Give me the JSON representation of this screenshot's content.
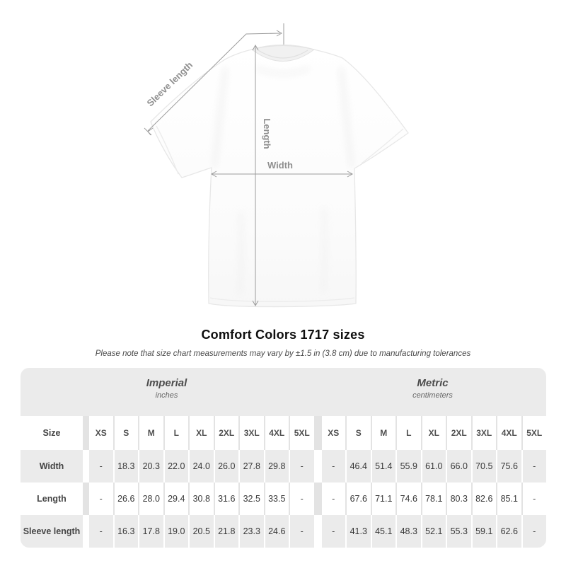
{
  "diagram": {
    "labels": {
      "sleeve": "Sleeve length",
      "length": "Length",
      "width": "Width"
    }
  },
  "title": "Comfort Colors 1717 sizes",
  "note": "Please note that size chart measurements may vary by ±1.5 in (3.8 cm) due to manufacturing tolerances",
  "table": {
    "groups": [
      {
        "name": "Imperial",
        "unit": "inches"
      },
      {
        "name": "Metric",
        "unit": "centimeters"
      }
    ],
    "size_label": "Size",
    "sizes": [
      "XS",
      "S",
      "M",
      "L",
      "XL",
      "2XL",
      "3XL",
      "4XL",
      "5XL"
    ],
    "rows": [
      {
        "label": "Width",
        "imperial": [
          "-",
          "18.3",
          "20.3",
          "22.0",
          "24.0",
          "26.0",
          "27.8",
          "29.8",
          "-"
        ],
        "metric": [
          "-",
          "46.4",
          "51.4",
          "55.9",
          "61.0",
          "66.0",
          "70.5",
          "75.6",
          "-"
        ]
      },
      {
        "label": "Length",
        "imperial": [
          "-",
          "26.6",
          "28.0",
          "29.4",
          "30.8",
          "31.6",
          "32.5",
          "33.5",
          "-"
        ],
        "metric": [
          "-",
          "67.6",
          "71.1",
          "74.6",
          "78.1",
          "80.3",
          "82.6",
          "85.1",
          "-"
        ]
      },
      {
        "label": "Sleeve length",
        "imperial": [
          "-",
          "16.3",
          "17.8",
          "19.0",
          "20.5",
          "21.8",
          "23.3",
          "24.6",
          "-"
        ],
        "metric": [
          "-",
          "41.3",
          "45.1",
          "48.3",
          "52.1",
          "55.3",
          "59.1",
          "62.6",
          "-"
        ]
      }
    ]
  },
  "chart_data": {
    "type": "table",
    "title": "Comfort Colors 1717 sizes",
    "column_groups": [
      "Imperial (inches)",
      "Metric (centimeters)"
    ],
    "columns": [
      "Size",
      "XS",
      "S",
      "M",
      "L",
      "XL",
      "2XL",
      "3XL",
      "4XL",
      "5XL"
    ],
    "rows": [
      [
        "Width (in)",
        "-",
        18.3,
        20.3,
        22.0,
        24.0,
        26.0,
        27.8,
        29.8,
        "-"
      ],
      [
        "Length (in)",
        "-",
        26.6,
        28.0,
        29.4,
        30.8,
        31.6,
        32.5,
        33.5,
        "-"
      ],
      [
        "Sleeve length (in)",
        "-",
        16.3,
        17.8,
        19.0,
        20.5,
        21.8,
        23.3,
        24.6,
        "-"
      ],
      [
        "Width (cm)",
        "-",
        46.4,
        51.4,
        55.9,
        61.0,
        66.0,
        70.5,
        75.6,
        "-"
      ],
      [
        "Length (cm)",
        "-",
        67.6,
        71.1,
        74.6,
        78.1,
        80.3,
        82.6,
        85.1,
        "-"
      ],
      [
        "Sleeve length (cm)",
        "-",
        41.3,
        45.1,
        48.3,
        52.1,
        55.3,
        59.1,
        62.6,
        "-"
      ]
    ]
  },
  "colors": {
    "card_shade": "#ebebeb",
    "measure_line": "#9c9c9c",
    "measure_label": "#8f8f8f"
  }
}
